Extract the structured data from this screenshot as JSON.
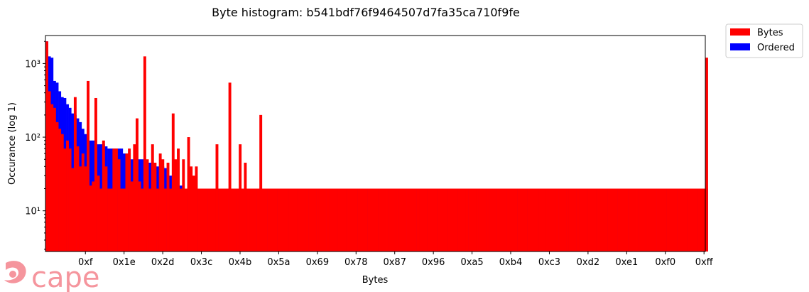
{
  "chart_data": {
    "type": "bar",
    "title": "Byte histogram: b541bdf76f9464507d7fa35ca710f9fe",
    "xlabel": "Bytes",
    "ylabel": "Occurance (log 1)",
    "y_scale": "log",
    "ylim": [
      2.8,
      2400
    ],
    "xlim": [
      0,
      255
    ],
    "x_ticks": [
      {
        "value": 15,
        "label": "0xf"
      },
      {
        "value": 30,
        "label": "0x1e"
      },
      {
        "value": 45,
        "label": "0x2d"
      },
      {
        "value": 60,
        "label": "0x3c"
      },
      {
        "value": 75,
        "label": "0x4b"
      },
      {
        "value": 90,
        "label": "0x5a"
      },
      {
        "value": 105,
        "label": "0x69"
      },
      {
        "value": 120,
        "label": "0x78"
      },
      {
        "value": 135,
        "label": "0x87"
      },
      {
        "value": 150,
        "label": "0x96"
      },
      {
        "value": 165,
        "label": "0xa5"
      },
      {
        "value": 180,
        "label": "0xb4"
      },
      {
        "value": 195,
        "label": "0xc3"
      },
      {
        "value": 210,
        "label": "0xd2"
      },
      {
        "value": 225,
        "label": "0xe1"
      },
      {
        "value": 240,
        "label": "0xf0"
      },
      {
        "value": 255,
        "label": "0xff"
      }
    ],
    "y_ticks": [
      {
        "value": 10,
        "label": "10¹"
      },
      {
        "value": 100,
        "label": "10²"
      },
      {
        "value": 1000,
        "label": "10³"
      }
    ],
    "legend": {
      "position": "outside-top-right"
    },
    "series": [
      {
        "name": "Bytes",
        "color": "#ff0000",
        "values": [
          2000,
          420,
          280,
          250,
          160,
          130,
          110,
          70,
          90,
          70,
          38,
          350,
          75,
          40,
          60,
          40,
          580,
          22,
          25,
          340,
          30,
          20,
          90,
          40,
          20,
          20,
          70,
          70,
          50,
          20,
          20,
          60,
          70,
          25,
          80,
          180,
          25,
          20,
          1250,
          50,
          20,
          80,
          45,
          20,
          60,
          50,
          20,
          45,
          20,
          210,
          50,
          70,
          20,
          50,
          20,
          100,
          40,
          30,
          40,
          20,
          20,
          20,
          20,
          20,
          20,
          20,
          80,
          20,
          20,
          20,
          20,
          550,
          20,
          20,
          20,
          80,
          20,
          45,
          20,
          20,
          20,
          20,
          20,
          200,
          20,
          20,
          20,
          20,
          20,
          20,
          20,
          20,
          20,
          20,
          20,
          20,
          20,
          20,
          20,
          20,
          20,
          20,
          20,
          20,
          20,
          20,
          20,
          20,
          20,
          20,
          20,
          20,
          20,
          20,
          20,
          20,
          20,
          20,
          20,
          20,
          20,
          20,
          20,
          20,
          20,
          20,
          20,
          20,
          20,
          20,
          20,
          20,
          20,
          20,
          20,
          20,
          20,
          20,
          20,
          20,
          20,
          20,
          20,
          20,
          20,
          20,
          20,
          20,
          20,
          20,
          20,
          20,
          20,
          20,
          20,
          20,
          20,
          20,
          20,
          20,
          20,
          20,
          20,
          20,
          20,
          20,
          20,
          20,
          20,
          20,
          20,
          20,
          20,
          20,
          20,
          20,
          20,
          20,
          20,
          20,
          20,
          20,
          20,
          20,
          20,
          20,
          20,
          20,
          20,
          20,
          20,
          20,
          20,
          20,
          20,
          20,
          20,
          20,
          20,
          20,
          20,
          20,
          20,
          20,
          20,
          20,
          20,
          20,
          20,
          20,
          20,
          20,
          20,
          20,
          20,
          20,
          20,
          20,
          20,
          20,
          20,
          20,
          20,
          20,
          20,
          20,
          20,
          20,
          20,
          20,
          20,
          20,
          20,
          20,
          20,
          20,
          20,
          20,
          20,
          20,
          20,
          20,
          20,
          20,
          20,
          20,
          20,
          20,
          20,
          20,
          20,
          20,
          20,
          20,
          20,
          20,
          1200
        ]
      },
      {
        "name": "Ordered",
        "color": "#0000ff",
        "values": []
      }
    ]
  },
  "logo": {
    "text": "cape",
    "color": "#f4838d"
  }
}
